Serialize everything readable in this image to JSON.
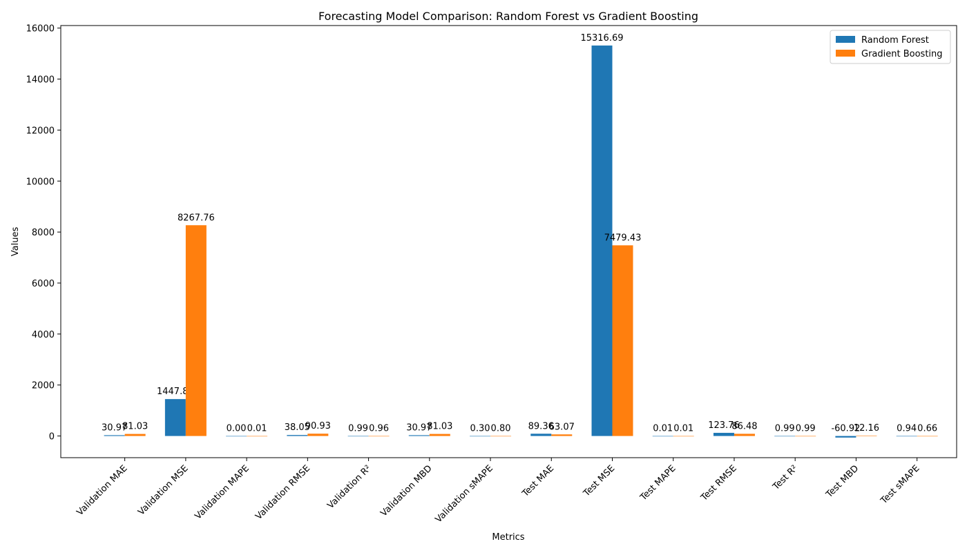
{
  "chart_data": {
    "type": "bar",
    "title": "Forecasting Model Comparison: Random Forest vs Gradient Boosting",
    "xlabel": "Metrics",
    "ylabel": "Values",
    "ylim": [
      -850,
      16100
    ],
    "yticks": [
      0,
      2000,
      4000,
      6000,
      8000,
      10000,
      12000,
      14000,
      16000
    ],
    "grid": false,
    "legend_position": "top-right",
    "categories": [
      "Validation MAE",
      "Validation MSE",
      "Validation MAPE",
      "Validation RMSE",
      "Validation R²",
      "Validation MBD",
      "Validation sMAPE",
      "Test MAE",
      "Test MSE",
      "Test MAPE",
      "Test RMSE",
      "Test R²",
      "Test MBD",
      "Test sMAPE"
    ],
    "series": [
      {
        "name": "Random Forest",
        "color": "#1f77b4",
        "values": [
          30.97,
          1447.86,
          0.0,
          38.05,
          0.99,
          30.97,
          0.3,
          89.36,
          15316.69,
          0.01,
          123.76,
          0.99,
          -60.92,
          0.94
        ],
        "labels": [
          "30.97",
          "1447.86",
          "0.00",
          "38.05",
          "0.99",
          "30.97",
          "0.30",
          "89.36",
          "15316.69",
          "0.01",
          "123.76",
          "0.99",
          "-60.92",
          "0.94"
        ]
      },
      {
        "name": "Gradient Boosting",
        "color": "#ff7f0e",
        "values": [
          81.03,
          8267.76,
          0.01,
          90.93,
          0.96,
          81.03,
          0.8,
          63.07,
          7479.43,
          0.01,
          86.48,
          0.99,
          12.16,
          0.66
        ],
        "labels": [
          "81.03",
          "8267.76",
          "0.01",
          "90.93",
          "0.96",
          "81.03",
          "0.80",
          "63.07",
          "7479.43",
          "0.01",
          "86.48",
          "0.99",
          "12.16",
          "0.66"
        ]
      }
    ]
  }
}
